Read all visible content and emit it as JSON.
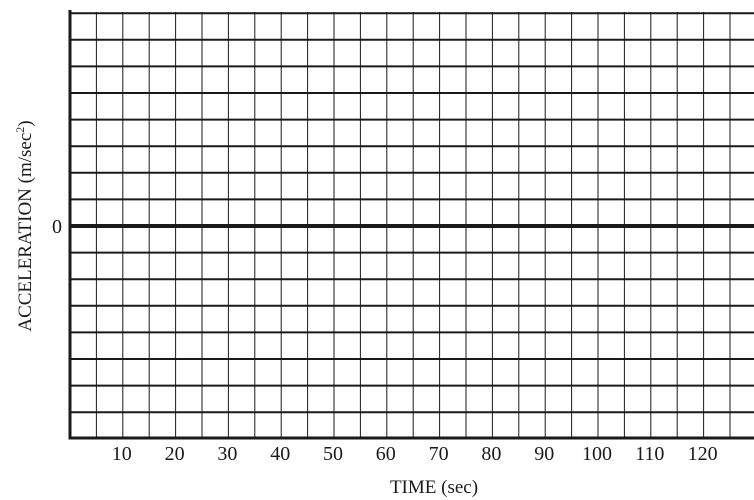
{
  "chart_data": {
    "type": "line",
    "title": "",
    "xlabel": "TIME (sec)",
    "ylabel_base": "ACCELERATION (m/sec",
    "ylabel_sup": "2",
    "ylabel_end": ")",
    "xlim": [
      0,
      130
    ],
    "x_minor_step": 5,
    "x_ticks": [
      10,
      20,
      30,
      40,
      50,
      60,
      70,
      80,
      90,
      100,
      110,
      120
    ],
    "x_tick_labels": [
      "10",
      "20",
      "30",
      "40",
      "50",
      "60",
      "70",
      "80",
      "90",
      "100",
      "110",
      "120"
    ],
    "y_minor_lines_above_zero": 8,
    "y_minor_lines_below_zero": 8,
    "y_tick_labels": [
      "0"
    ],
    "grid": true,
    "series": []
  }
}
